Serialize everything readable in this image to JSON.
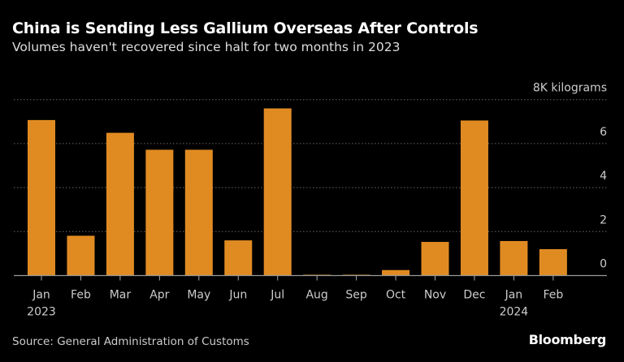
{
  "title": "China is Sending Less Gallium Overseas After Controls",
  "subtitle": "Volumes haven't recovered since halt for two months in 2023",
  "source": "Source: General Administration of Customs",
  "logo": "Bloomberg",
  "chart_data": {
    "type": "bar",
    "title": "China is Sending Less Gallium Overseas After Controls",
    "subtitle": "Volumes haven't recovered since halt for two months in 2023",
    "unit_label": "8K kilograms",
    "categories": [
      "Jan",
      "Feb",
      "Mar",
      "Apr",
      "May",
      "Jun",
      "Jul",
      "Aug",
      "Sep",
      "Oct",
      "Nov",
      "Dec",
      "Jan",
      "Feb"
    ],
    "year_labels": [
      {
        "index": 0,
        "label": "2023"
      },
      {
        "index": 12,
        "label": "2024"
      }
    ],
    "values": [
      7.07,
      1.81,
      6.49,
      5.72,
      5.72,
      1.6,
      7.6,
      0.02,
      0.02,
      0.25,
      1.53,
      7.05,
      1.57,
      1.2
    ],
    "ylim": [
      0,
      8
    ],
    "yticks": [
      0,
      2,
      4,
      6,
      8
    ],
    "ytick_labels": [
      "0",
      "2",
      "4",
      "6",
      "8K kilograms"
    ],
    "grid": true,
    "bar_color": "#e08b22"
  }
}
